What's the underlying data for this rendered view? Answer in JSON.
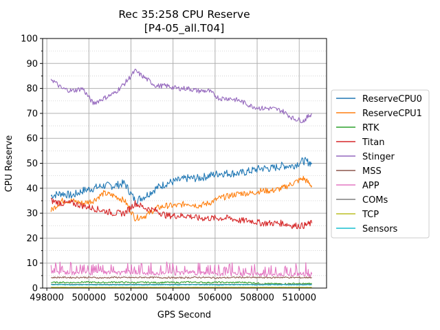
{
  "chart_data": {
    "type": "line",
    "title": "Rec 35:258 CPU Reserve",
    "subtitle": "[P4-05_all.T04]",
    "xlabel": "GPS Second",
    "ylabel": "CPU Reserve",
    "xlim": [
      497800,
      511300
    ],
    "ylim": [
      0,
      100
    ],
    "xticks": [
      498000,
      500000,
      502000,
      504000,
      506000,
      508000,
      510000
    ],
    "xtick_labels": [
      "498000",
      "500000",
      "502000",
      "504000",
      "506000",
      "508000",
      "510000"
    ],
    "yticks": [
      0,
      10,
      20,
      30,
      40,
      50,
      60,
      70,
      80,
      90,
      100
    ],
    "ytick_labels": [
      "0",
      "10",
      "20",
      "30",
      "40",
      "50",
      "60",
      "70",
      "80",
      "90",
      "100"
    ],
    "grid": "major solid, minor dotted",
    "legend_position": "outside-right",
    "x": [
      498200,
      498700,
      499200,
      499700,
      500200,
      500700,
      501200,
      501700,
      502200,
      502700,
      503200,
      503700,
      504200,
      504700,
      505200,
      505700,
      506200,
      506700,
      507200,
      507700,
      508200,
      508700,
      509200,
      509700,
      510200,
      510600
    ],
    "series": [
      {
        "name": "ReserveCPU0",
        "color": "#1f77b4",
        "values": [
          37,
          38,
          37,
          39,
          40,
          41,
          41,
          42,
          35,
          37,
          40,
          42,
          43,
          44,
          44,
          45,
          46,
          46,
          46,
          47,
          48,
          48,
          49,
          49,
          51,
          50
        ]
      },
      {
        "name": "ReserveCPU1",
        "color": "#ff7f0e",
        "values": [
          31,
          35,
          35,
          34,
          35,
          38,
          37,
          35,
          28,
          29,
          32,
          33,
          33,
          34,
          33,
          34,
          36,
          37,
          38,
          38,
          39,
          39,
          40,
          42,
          44,
          41
        ]
      },
      {
        "name": "RTK",
        "color": "#2ca02c",
        "values": [
          2.2,
          2.3,
          2.2,
          2.4,
          2.3,
          2.2,
          2.4,
          2.3,
          2.2,
          2.3,
          2.2,
          2.3,
          2.2,
          2.4,
          2.3,
          2.2,
          2.3,
          2.2,
          2.3,
          2.2,
          1.8,
          1.7,
          1.7,
          1.8,
          1.7,
          1.8
        ]
      },
      {
        "name": "Titan",
        "color": "#d62728",
        "values": [
          35,
          34,
          34,
          33,
          32,
          31,
          30,
          30,
          34,
          32,
          31,
          29,
          29,
          29,
          28,
          28,
          28,
          28,
          27,
          27,
          26,
          26,
          26,
          25,
          25,
          26
        ]
      },
      {
        "name": "Stinger",
        "color": "#9467bd",
        "values": [
          84,
          80,
          79,
          80,
          74,
          76,
          78,
          82,
          87,
          84,
          81,
          81,
          80,
          80,
          79,
          79,
          76,
          76,
          75,
          73,
          72,
          72,
          71,
          68,
          67,
          70
        ]
      },
      {
        "name": "MSS",
        "color": "#8c564b",
        "values": [
          4.2,
          4.3,
          4.2,
          4.3,
          4.2,
          4.1,
          4.3,
          4.2,
          4.2,
          4.3,
          4.2,
          4.2,
          4.1,
          4.2,
          4.3,
          4.2,
          4.1,
          4.2,
          4.3,
          4.2,
          4.2,
          4.2,
          4.3,
          4.2,
          4.2,
          4.3
        ]
      },
      {
        "name": "APP",
        "color": "#e377c2",
        "values": [
          6,
          6.5,
          6,
          6.5,
          6,
          6.5,
          6,
          6,
          6.5,
          6,
          6,
          6,
          6,
          6.5,
          6,
          6,
          5.5,
          5.5,
          5.5,
          5.5,
          5.5,
          5.5,
          5.5,
          5.5,
          5.5,
          5.5
        ]
      },
      {
        "name": "COMs",
        "color": "#7f7f7f",
        "values": [
          1.5,
          1.5,
          1.5,
          1.5,
          1.5,
          1.5,
          1.5,
          1.5,
          1.5,
          1.5,
          1.5,
          1.5,
          1.5,
          1.5,
          1.5,
          1.5,
          1.5,
          1.5,
          1.5,
          1.5,
          1.5,
          1.5,
          1.5,
          1.5,
          1.5,
          1.5
        ]
      },
      {
        "name": "TCP",
        "color": "#bcbd22",
        "values": [
          0.3,
          0.3,
          0.3,
          0.3,
          0.3,
          0.3,
          0.3,
          0.3,
          0.3,
          0.3,
          0.3,
          0.3,
          0.3,
          0.3,
          0.3,
          0.3,
          0.3,
          0.3,
          0.3,
          0.3,
          0.3,
          0.3,
          0.3,
          0.3,
          0.3,
          0.3
        ]
      },
      {
        "name": "Sensors",
        "color": "#17becf",
        "values": [
          1.3,
          1.3,
          1.2,
          1.3,
          1.3,
          1.2,
          1.3,
          1.3,
          1.3,
          1.2,
          1.3,
          1.3,
          1.2,
          1.3,
          1.3,
          1.3,
          1.2,
          1.3,
          1.3,
          1.3,
          1.2,
          1.3,
          1.3,
          1.2,
          1.3,
          1.3
        ]
      }
    ]
  }
}
